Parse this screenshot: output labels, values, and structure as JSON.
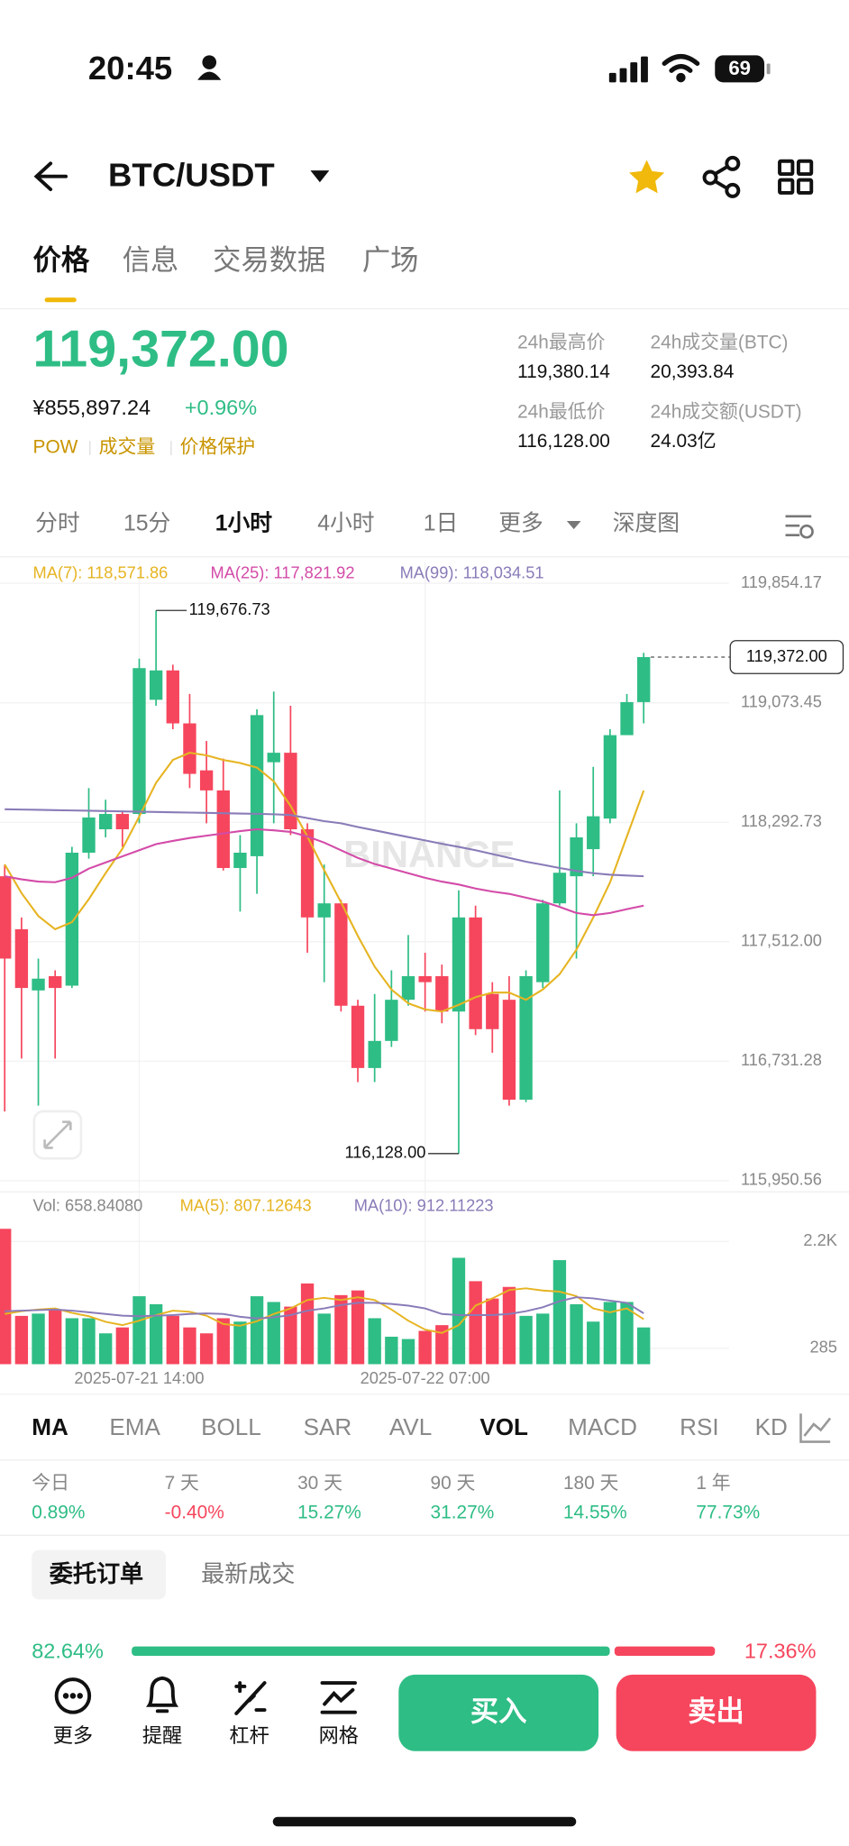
{
  "status_bar": {
    "time": "20:45",
    "battery": "69"
  },
  "header": {
    "pair": "BTC/USDT"
  },
  "tabs": {
    "items": [
      "价格",
      "信息",
      "交易数据",
      "广场"
    ],
    "active": 0
  },
  "price": {
    "last": "119,372.00",
    "cny": "¥855,897.24",
    "change": "+0.96%",
    "tags": [
      "POW",
      "成交量",
      "价格保护"
    ]
  },
  "stats": [
    {
      "label": "24h最高价",
      "value": "119,380.14"
    },
    {
      "label": "24h成交量(BTC)",
      "value": "20,393.84"
    },
    {
      "label": "24h最低价",
      "value": "116,128.00"
    },
    {
      "label": "24h成交额(USDT)",
      "value": "24.03亿"
    }
  ],
  "intervals": {
    "items": [
      "分时",
      "15分",
      "1小时",
      "4小时",
      "1日",
      "更多",
      "深度图"
    ],
    "active": 2
  },
  "chart_data": {
    "type": "candlestick",
    "watermark": "BINANCE",
    "categories": [
      null,
      null,
      null,
      null,
      null,
      null,
      null,
      null,
      "2025-07-21 14:00",
      null,
      null,
      null,
      null,
      null,
      null,
      null,
      null,
      null,
      null,
      null,
      null,
      null,
      null,
      null,
      null,
      "2025-07-22 07:00",
      null,
      null,
      null,
      null,
      null,
      null,
      null,
      null,
      null,
      null,
      null,
      null,
      null
    ],
    "open": [
      117940,
      117594,
      117194,
      117287,
      117225,
      118094,
      118247,
      118347,
      118347,
      119093,
      119285,
      118939,
      118632,
      118501,
      117994,
      118071,
      118685,
      118747,
      118247,
      117671,
      117763,
      117094,
      116687,
      116864,
      117133,
      117287,
      117287,
      117056,
      117671,
      117171,
      117133,
      116480,
      117248,
      117763,
      117940,
      118117,
      118317,
      118862,
      119078
    ],
    "high": [
      118017,
      117671,
      117402,
      117325,
      118132,
      118516,
      118440,
      118363,
      119362,
      119676.73,
      119323,
      119131,
      118824,
      118709,
      118209,
      119031,
      119147,
      119054,
      118286,
      118017,
      117786,
      117133,
      117171,
      117325,
      117556,
      117440,
      117363,
      117848,
      117748,
      117248,
      117287,
      117325,
      117786,
      118501,
      118286,
      118655,
      118901,
      119131,
      119400
    ],
    "low": [
      116403,
      116749,
      116441,
      116749,
      117210,
      118055,
      118194,
      118132,
      118286,
      119054,
      118901,
      118516,
      118286,
      117978,
      117709,
      117825,
      118286,
      118209,
      117440,
      117248,
      117056,
      116595,
      116595,
      116825,
      117094,
      117056,
      116979,
      116128.0,
      116902,
      116787,
      116441,
      116464,
      117210,
      117748,
      117402,
      117940,
      118286,
      118901,
      118939
    ],
    "close": [
      117402,
      117210,
      117271,
      117210,
      118094,
      118324,
      118347,
      118247,
      119300,
      119285,
      118939,
      118609,
      118501,
      117994,
      118094,
      118993,
      118747,
      118247,
      117671,
      117763,
      117094,
      116687,
      116864,
      117133,
      117287,
      117248,
      117056,
      117671,
      116941,
      116941,
      116480,
      117287,
      117763,
      117963,
      118194,
      118332,
      118862,
      119078,
      119372.0
    ],
    "up_color": "#2ebd85",
    "down_color": "#f6465d",
    "high_label": "119,676.73",
    "low_label": "116,128.00",
    "last_label": "119,372.00",
    "ylim": [
      115950.56,
      119854.17
    ],
    "yticks": [
      {
        "value": 119854.17,
        "label": "119,854.17"
      },
      {
        "value": 119073.45,
        "label": "119,073.45"
      },
      {
        "value": 118292.73,
        "label": "118,292.73"
      },
      {
        "value": 117512.0,
        "label": "117,512.00"
      },
      {
        "value": 116731.28,
        "label": "116,731.28"
      },
      {
        "value": 115950.56,
        "label": "115,950.56"
      }
    ],
    "series": [
      {
        "name": "MA(7): 118,571.86",
        "color": "#e6b422",
        "values": [
          118017,
          117830,
          117680,
          117594,
          117640,
          117790,
          117960,
          118120,
          118330,
          118550,
          118700,
          118747,
          118730,
          118700,
          118680,
          118650,
          118560,
          118400,
          118200,
          117980,
          117770,
          117550,
          117350,
          117200,
          117110,
          117070,
          117056,
          117100,
          117150,
          117180,
          117180,
          117133,
          117200,
          117300,
          117460,
          117670,
          117900,
          118200,
          118500
        ]
      },
      {
        "name": "MA(25): 117,821.92",
        "color": "#d34ba8",
        "values": [
          117940,
          117920,
          117905,
          117901,
          117930,
          117990,
          118030,
          118070,
          118110,
          118150,
          118171,
          118190,
          118205,
          118220,
          118235,
          118247,
          118240,
          118230,
          118200,
          118160,
          118110,
          118060,
          118020,
          117990,
          117960,
          117930,
          117905,
          117886,
          117860,
          117840,
          117825,
          117800,
          117775,
          117740,
          117700,
          117686,
          117700,
          117725,
          117748
        ]
      },
      {
        "name": "MA(99): 118,034.51",
        "color": "#8a7bb8",
        "values": [
          118378,
          118376,
          118374,
          118372,
          118370,
          118368,
          118366,
          118364,
          118362,
          118360,
          118358,
          118356,
          118354,
          118352,
          118350,
          118348,
          118345,
          118340,
          118320,
          118300,
          118286,
          118262,
          118240,
          118218,
          118196,
          118174,
          118152,
          118132,
          118110,
          118085,
          118060,
          118035,
          118015,
          117994,
          117975,
          117960,
          117950,
          117945,
          117940
        ]
      }
    ],
    "volume": {
      "label": "Vol: 658.84080",
      "ylim": [
        0,
        2530
      ],
      "yticks": [
        {
          "value": 2200,
          "label": "2.2K"
        },
        285
      ],
      "values": [
        2427,
        866,
        907,
        970,
        824,
        824,
        553,
        659,
        1218,
        1075,
        866,
        659,
        553,
        824,
        763,
        1218,
        1115,
        1032,
        1447,
        907,
        1238,
        1322,
        824,
        492,
        451,
        597,
        700,
        1907,
        1488,
        1177,
        1385,
        866,
        907,
        1865,
        1075,
        763,
        1115,
        1115,
        658.8408
      ],
      "series": [
        {
          "name": "MA(5): 807.12643",
          "color": "#e6b422",
          "values": [
            900,
            950,
            980,
            1000,
            920,
            860,
            760,
            700,
            780,
            880,
            960,
            940,
            870,
            720,
            690,
            770,
            900,
            1000,
            1150,
            1190,
            1150,
            1200,
            1150,
            980,
            780,
            620,
            560,
            700,
            1050,
            1180,
            1330,
            1360,
            1320,
            1300,
            1220,
            1000,
            930,
            1000,
            807.12643
          ]
        },
        {
          "name": "MA(10): 912.11223",
          "color": "#8a7bb8",
          "values": [
            950,
            960,
            970,
            980,
            960,
            930,
            900,
            870,
            860,
            870,
            880,
            900,
            910,
            900,
            850,
            820,
            840,
            880,
            960,
            1000,
            1060,
            1100,
            1100,
            1080,
            1050,
            1000,
            900,
            880,
            880,
            880,
            900,
            950,
            1020,
            1130,
            1200,
            1180,
            1140,
            1100,
            912.11223
          ]
        }
      ]
    }
  },
  "indicators": {
    "items": [
      "MA",
      "EMA",
      "BOLL",
      "SAR",
      "AVL",
      "VOL",
      "MACD",
      "RSI",
      "KD"
    ],
    "active": [
      0,
      5
    ]
  },
  "performance": [
    {
      "label": "今日",
      "value": "0.89%"
    },
    {
      "label": "7 天",
      "value": "-0.40%"
    },
    {
      "label": "30 天",
      "value": "15.27%"
    },
    {
      "label": "90 天",
      "value": "31.27%"
    },
    {
      "label": "180 天",
      "value": "14.55%"
    },
    {
      "label": "1 年",
      "value": "77.73%"
    }
  ],
  "orders": {
    "tabs": [
      "委托订单",
      "最新成交"
    ],
    "ratio": {
      "values": [
        82.64,
        17.36
      ],
      "value_labels": [
        "82.64%",
        "17.36%"
      ]
    }
  },
  "bottom_nav": {
    "items": [
      "更多",
      "提醒",
      "杠杆",
      "网格"
    ],
    "buy": "买入",
    "sell": "卖出"
  }
}
